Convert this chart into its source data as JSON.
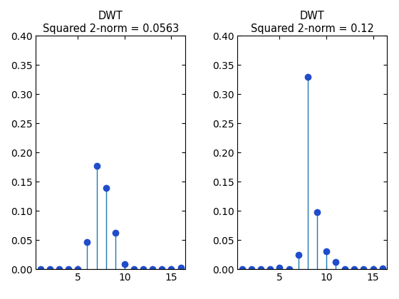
{
  "ax1_title_line1": "DWT",
  "ax1_title_line2": "Squared 2-norm = 0.0563",
  "ax2_title_line1": "DWT",
  "ax2_title_line2": "Squared 2-norm = 0.12",
  "ax1_x": [
    1,
    2,
    3,
    4,
    5,
    6,
    7,
    8,
    9,
    10,
    11,
    12,
    13,
    14,
    15,
    16
  ],
  "ax1_y": [
    0.0,
    0.0,
    0.0,
    0.0,
    0.0,
    0.046,
    0.177,
    0.139,
    0.062,
    0.008,
    0.0,
    0.0,
    0.0,
    0.0,
    0.0,
    0.002
  ],
  "ax2_x": [
    1,
    2,
    3,
    4,
    5,
    6,
    7,
    8,
    9,
    10,
    11,
    12,
    13,
    14,
    15,
    16
  ],
  "ax2_y": [
    0.0,
    0.0,
    0.0,
    0.0,
    0.002,
    0.0,
    0.024,
    0.33,
    0.098,
    0.03,
    0.012,
    0.0,
    0.0,
    0.0,
    0.0,
    0.001
  ],
  "ylim": [
    0,
    0.4
  ],
  "yticks": [
    0.0,
    0.05,
    0.1,
    0.15,
    0.2,
    0.25,
    0.3,
    0.35,
    0.4
  ],
  "xlim": [
    0.5,
    16.5
  ],
  "xticks": [
    5,
    10,
    15
  ],
  "stem_color": "#1f77b4",
  "marker_color": "#1f4dcc",
  "bg_color": "#ffffff",
  "title_fontsize": 10.5,
  "tick_fontsize": 10,
  "marker_size": 6
}
